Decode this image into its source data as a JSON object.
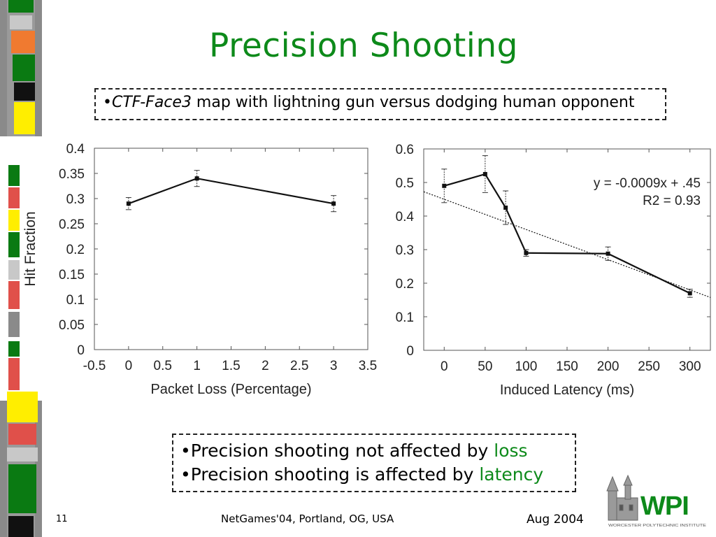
{
  "title": "Precision Shooting",
  "subtitle": {
    "bullet": "•",
    "map_name": "CTF-Face3",
    "rest": " map with lightning gun versus dodging human opponent"
  },
  "bullets": [
    {
      "prefix": "•Precision shooting not affected by ",
      "highlight": "loss"
    },
    {
      "prefix": "•Precision shooting is affected by ",
      "highlight": "latency"
    }
  ],
  "footer": {
    "slide_number": "11",
    "center": "NetGames'04, Portland, OG, USA",
    "date": "Aug 2004"
  },
  "logo": {
    "text": "WPI",
    "caption": "WORCESTER POLYTECHNIC INSTITUTE"
  },
  "colors": {
    "title_green": "#0d8a1a",
    "logo_green": "#0d8a1a",
    "logo_red": "#c42020"
  },
  "chart_data": [
    {
      "type": "line",
      "xlabel": "Packet Loss (Percentage)",
      "ylabel": "Hit Fraction",
      "xlim": [
        -0.5,
        3.5
      ],
      "ylim": [
        0,
        0.4
      ],
      "xticks": [
        -0.5,
        0,
        0.5,
        1,
        1.5,
        2,
        2.5,
        3,
        3.5
      ],
      "xtick_labels": [
        "-0.5",
        "0",
        "0.5",
        "1",
        "1.5",
        "2",
        "2.5",
        "3",
        "3.5"
      ],
      "yticks": [
        0,
        0.05,
        0.1,
        0.15,
        0.2,
        0.25,
        0.3,
        0.35,
        0.4
      ],
      "ytick_labels": [
        "0",
        "0.05",
        "0.1",
        "0.15",
        "0.2",
        "0.25",
        "0.3",
        "0.35",
        "0.4"
      ],
      "grid": false,
      "series": [
        {
          "x": [
            0,
            1,
            3
          ],
          "y": [
            0.29,
            0.34,
            0.29
          ],
          "err": [
            0.012,
            0.016,
            0.016
          ]
        }
      ]
    },
    {
      "type": "line",
      "xlabel": "Induced Latency (ms)",
      "ylabel": "",
      "xlim": [
        -25,
        325
      ],
      "ylim": [
        0,
        0.6
      ],
      "xticks": [
        0,
        50,
        100,
        150,
        200,
        250,
        300
      ],
      "xtick_labels": [
        "0",
        "50",
        "100",
        "150",
        "200",
        "250",
        "300"
      ],
      "yticks": [
        0,
        0.1,
        0.2,
        0.3,
        0.4,
        0.5,
        0.6
      ],
      "ytick_labels": [
        "0",
        "0.1",
        "0.2",
        "0.3",
        "0.4",
        "0.5",
        "0.6"
      ],
      "grid": false,
      "series": [
        {
          "x": [
            0,
            50,
            75,
            100,
            200,
            300
          ],
          "y": [
            0.49,
            0.525,
            0.425,
            0.29,
            0.288,
            0.17
          ],
          "err": [
            0.05,
            0.055,
            0.05,
            0.01,
            0.02,
            0.012
          ]
        }
      ],
      "trendline": {
        "slope": -0.0009,
        "intercept": 0.45,
        "x_start": -25,
        "x_end": 325
      },
      "annotations": [
        "y = -0.0009x + .45",
        "R2 = 0.93"
      ]
    }
  ]
}
